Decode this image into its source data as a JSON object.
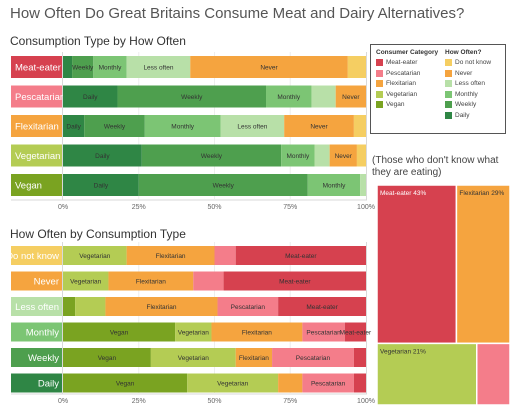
{
  "title": "How Often Do Great Britains Consume Meat and Dairy Alternatives?",
  "colors": {
    "Meat-eater": "#d6414f",
    "Pescatarian": "#f47d8a",
    "Flexitarian": "#f5a43f",
    "Vegetarian": "#b4cc54",
    "Vegan": "#7aa321",
    "Do not know": "#f5ce62",
    "Never": "#f5a43f",
    "Less often": "#b8e0a8",
    "Monthly": "#7cc574",
    "Weekly": "#4e9f4e",
    "Daily": "#2f8645"
  },
  "legend": {
    "category_title": "Consumer Category",
    "category_items": [
      "Meat-eater",
      "Pescatarian",
      "Flexitarian",
      "Vegetarian",
      "Vegan"
    ],
    "frequency_title": "How Often?",
    "frequency_items": [
      "Do not know",
      "Never",
      "Less often",
      "Monthly",
      "Weekly",
      "Daily"
    ]
  },
  "treemap_caption": "(Those who don't know what they are eating)",
  "chart_data": [
    {
      "type": "bar",
      "orientation": "horizontal",
      "stacked": "100%",
      "title": "Consumption Type by How Often",
      "categories": [
        "Meat-eater",
        "Pescatarian",
        "Flexitarian",
        "Vegetarian",
        "Vegan"
      ],
      "series": [
        {
          "name": "Daily",
          "values": [
            3,
            18,
            7,
            26,
            26
          ]
        },
        {
          "name": "Weekly",
          "values": [
            7,
            49,
            20,
            46,
            58
          ]
        },
        {
          "name": "Monthly",
          "values": [
            11,
            15,
            25,
            11,
            18
          ]
        },
        {
          "name": "Less often",
          "values": [
            21,
            8,
            21,
            5,
            2
          ]
        },
        {
          "name": "Never",
          "values": [
            52,
            10,
            23,
            9,
            0
          ]
        },
        {
          "name": "Do not know",
          "values": [
            6,
            0,
            4,
            3,
            0
          ]
        }
      ],
      "segment_labels": [
        [
          "",
          "Weekly",
          "Monthly",
          "Less often",
          "Never",
          ""
        ],
        [
          "Daily",
          "Weekly",
          "Monthly",
          "",
          "Never",
          ""
        ],
        [
          "Daily",
          "Weekly",
          "Monthly",
          "Less often",
          "Never",
          ""
        ],
        [
          "Daily",
          "Weekly",
          "Monthly",
          "",
          "Never",
          ""
        ],
        [
          "Daily",
          "Weekly",
          "Monthly",
          "",
          "",
          ""
        ]
      ],
      "x_ticks": [
        "0%",
        "25%",
        "50%",
        "75%",
        "100%"
      ],
      "xlim": [
        0,
        100
      ]
    },
    {
      "type": "bar",
      "orientation": "horizontal",
      "stacked": "100%",
      "title": "How Often by Consumption Type",
      "categories": [
        "Do not know",
        "Never",
        "Less often",
        "Monthly",
        "Weekly",
        "Daily"
      ],
      "series": [
        {
          "name": "Vegan",
          "values": [
            0,
            0,
            4,
            37,
            29,
            41
          ]
        },
        {
          "name": "Vegetarian",
          "values": [
            21,
            15,
            10,
            12,
            28,
            30
          ]
        },
        {
          "name": "Flexitarian",
          "values": [
            29,
            28,
            37,
            30,
            12,
            8
          ]
        },
        {
          "name": "Pescatarian",
          "values": [
            7,
            10,
            20,
            14,
            27,
            17
          ]
        },
        {
          "name": "Meat-eater",
          "values": [
            43,
            47,
            29,
            7,
            4,
            4
          ]
        }
      ],
      "segment_labels": [
        [
          "",
          "Vegetarian",
          "Flexitarian",
          "",
          "Meat-eater"
        ],
        [
          "",
          "Vegetarian",
          "Flexitarian",
          "",
          "Meat-eater"
        ],
        [
          "",
          "",
          "Flexitarian",
          "Pescatarian",
          "Meat-eater"
        ],
        [
          "Vegan",
          "Vegetarian",
          "Flexitarian",
          "Pescatarian",
          "Meat-eater"
        ],
        [
          "Vegan",
          "Vegetarian",
          "Flexitarian",
          "Pescatarian",
          ""
        ],
        [
          "Vegan",
          "Vegetarian",
          "",
          "Pescatarian",
          ""
        ]
      ],
      "x_ticks": [
        "0%",
        "25%",
        "50%",
        "75%",
        "100%"
      ],
      "xlim": [
        0,
        100
      ]
    },
    {
      "type": "treemap",
      "categories": [
        "Meat-eater",
        "Flexitarian",
        "Vegetarian",
        "Pescatarian"
      ],
      "values": [
        43,
        29,
        21,
        7
      ],
      "labels": [
        "Meat-eater 43%",
        "Flexitarian 29%",
        "Vegetarian 21%",
        ""
      ]
    }
  ]
}
